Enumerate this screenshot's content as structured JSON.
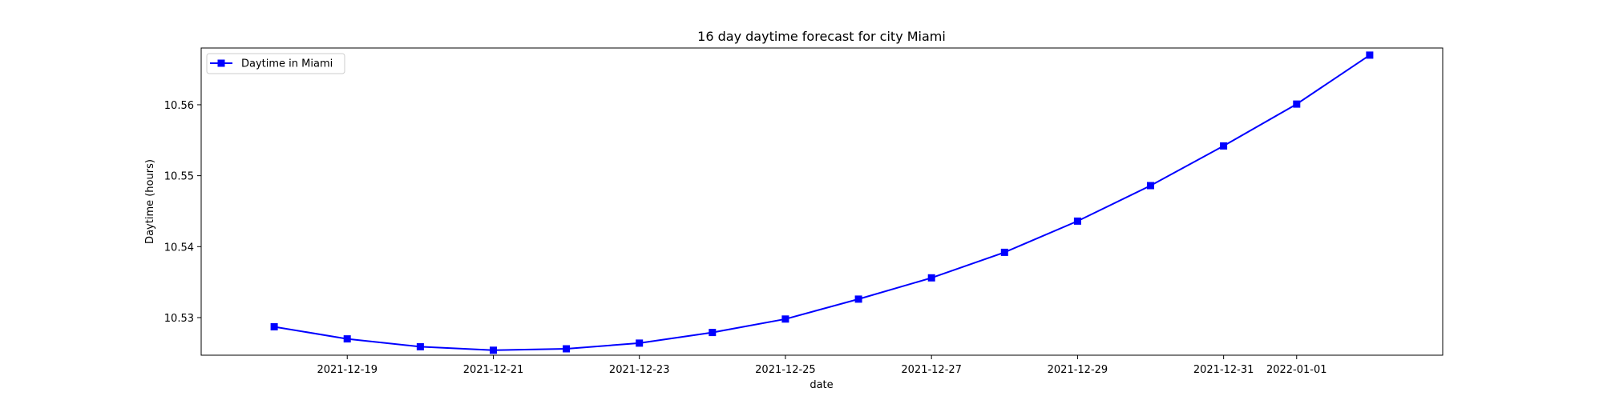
{
  "chart_data": {
    "type": "line",
    "title": "16 day daytime forecast for city Miami",
    "xlabel": "date",
    "ylabel": "Daytime (hours)",
    "x": [
      "2021-12-18",
      "2021-12-19",
      "2021-12-20",
      "2021-12-21",
      "2021-12-22",
      "2021-12-23",
      "2021-12-24",
      "2021-12-25",
      "2021-12-26",
      "2021-12-27",
      "2021-12-28",
      "2021-12-29",
      "2021-12-30",
      "2021-12-31",
      "2022-01-01",
      "2022-01-02"
    ],
    "series": [
      {
        "name": "Daytime in Miami",
        "color": "#0000ff",
        "marker": "square",
        "values": [
          10.5287,
          10.527,
          10.5259,
          10.5254,
          10.5256,
          10.5264,
          10.5279,
          10.5298,
          10.5326,
          10.5356,
          10.5392,
          10.5436,
          10.5486,
          10.5542,
          10.5601,
          10.567
        ]
      }
    ],
    "xticks": [
      "2021-12-19",
      "2021-12-21",
      "2021-12-23",
      "2021-12-25",
      "2021-12-27",
      "2021-12-29",
      "2021-12-31",
      "2022-01-01"
    ],
    "yticks": [
      "10.53",
      "10.54",
      "10.55",
      "10.56"
    ],
    "ylim": [
      10.5247,
      10.568
    ],
    "xlim": [
      "2021-12-17",
      "2022-01-03"
    ],
    "grid": false,
    "legend_position": "top-left"
  }
}
